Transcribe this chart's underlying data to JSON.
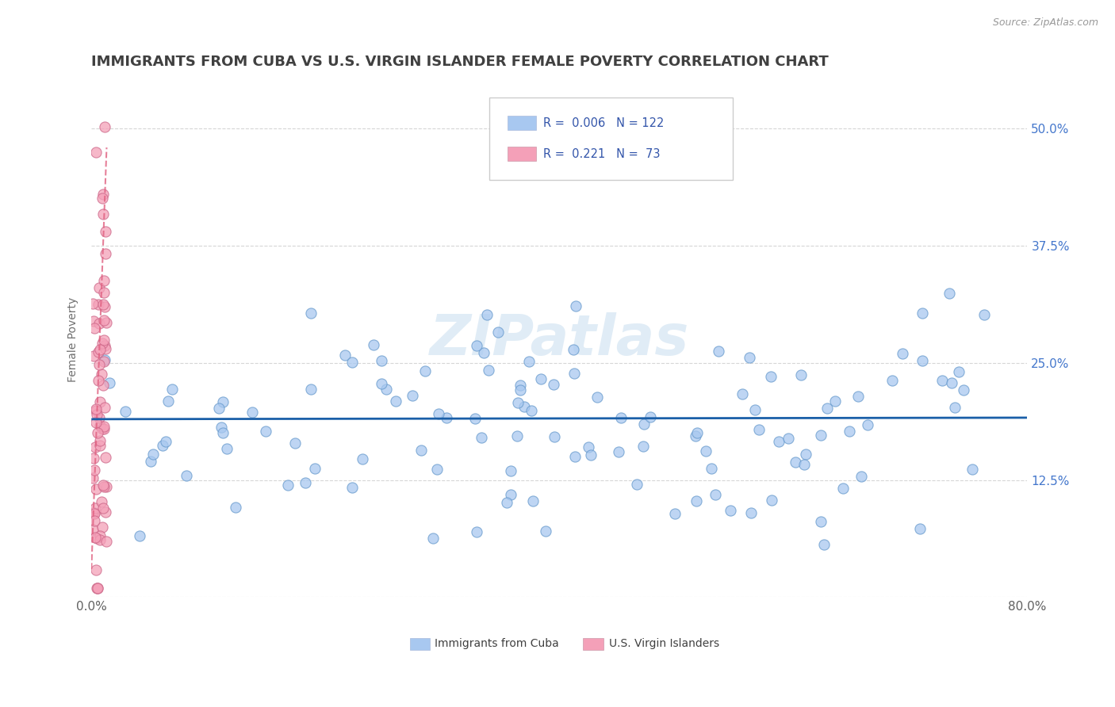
{
  "title": "IMMIGRANTS FROM CUBA VS U.S. VIRGIN ISLANDER FEMALE POVERTY CORRELATION CHART",
  "source": "Source: ZipAtlas.com",
  "ylabel": "Female Poverty",
  "xlim": [
    0.0,
    0.8
  ],
  "ylim": [
    0.0,
    0.55
  ],
  "yticks": [
    0.0,
    0.125,
    0.25,
    0.375,
    0.5
  ],
  "ytick_labels": [
    "",
    "12.5%",
    "25.0%",
    "37.5%",
    "50.0%"
  ],
  "xtick_labels": [
    "0.0%",
    "80.0%"
  ],
  "r_cuba": 0.006,
  "n_cuba": 122,
  "r_virgin": 0.221,
  "n_virgin": 73,
  "legend_label_cuba": "Immigrants from Cuba",
  "legend_label_virgin": "U.S. Virgin Islanders",
  "color_cuba": "#a8c8f0",
  "color_virgin": "#f4a0b8",
  "outline_cuba": "#6699cc",
  "outline_virgin": "#cc6688",
  "line_color_cuba": "#1a5fa8",
  "line_color_virgin": "#e06080",
  "watermark": "ZIPatlas",
  "background_color": "#ffffff",
  "grid_color": "#cccccc",
  "title_color": "#404040",
  "title_fontsize": 13,
  "axis_label_color": "#707070",
  "tick_color_right": "#4477cc",
  "legend_r_color": "#3355aa"
}
